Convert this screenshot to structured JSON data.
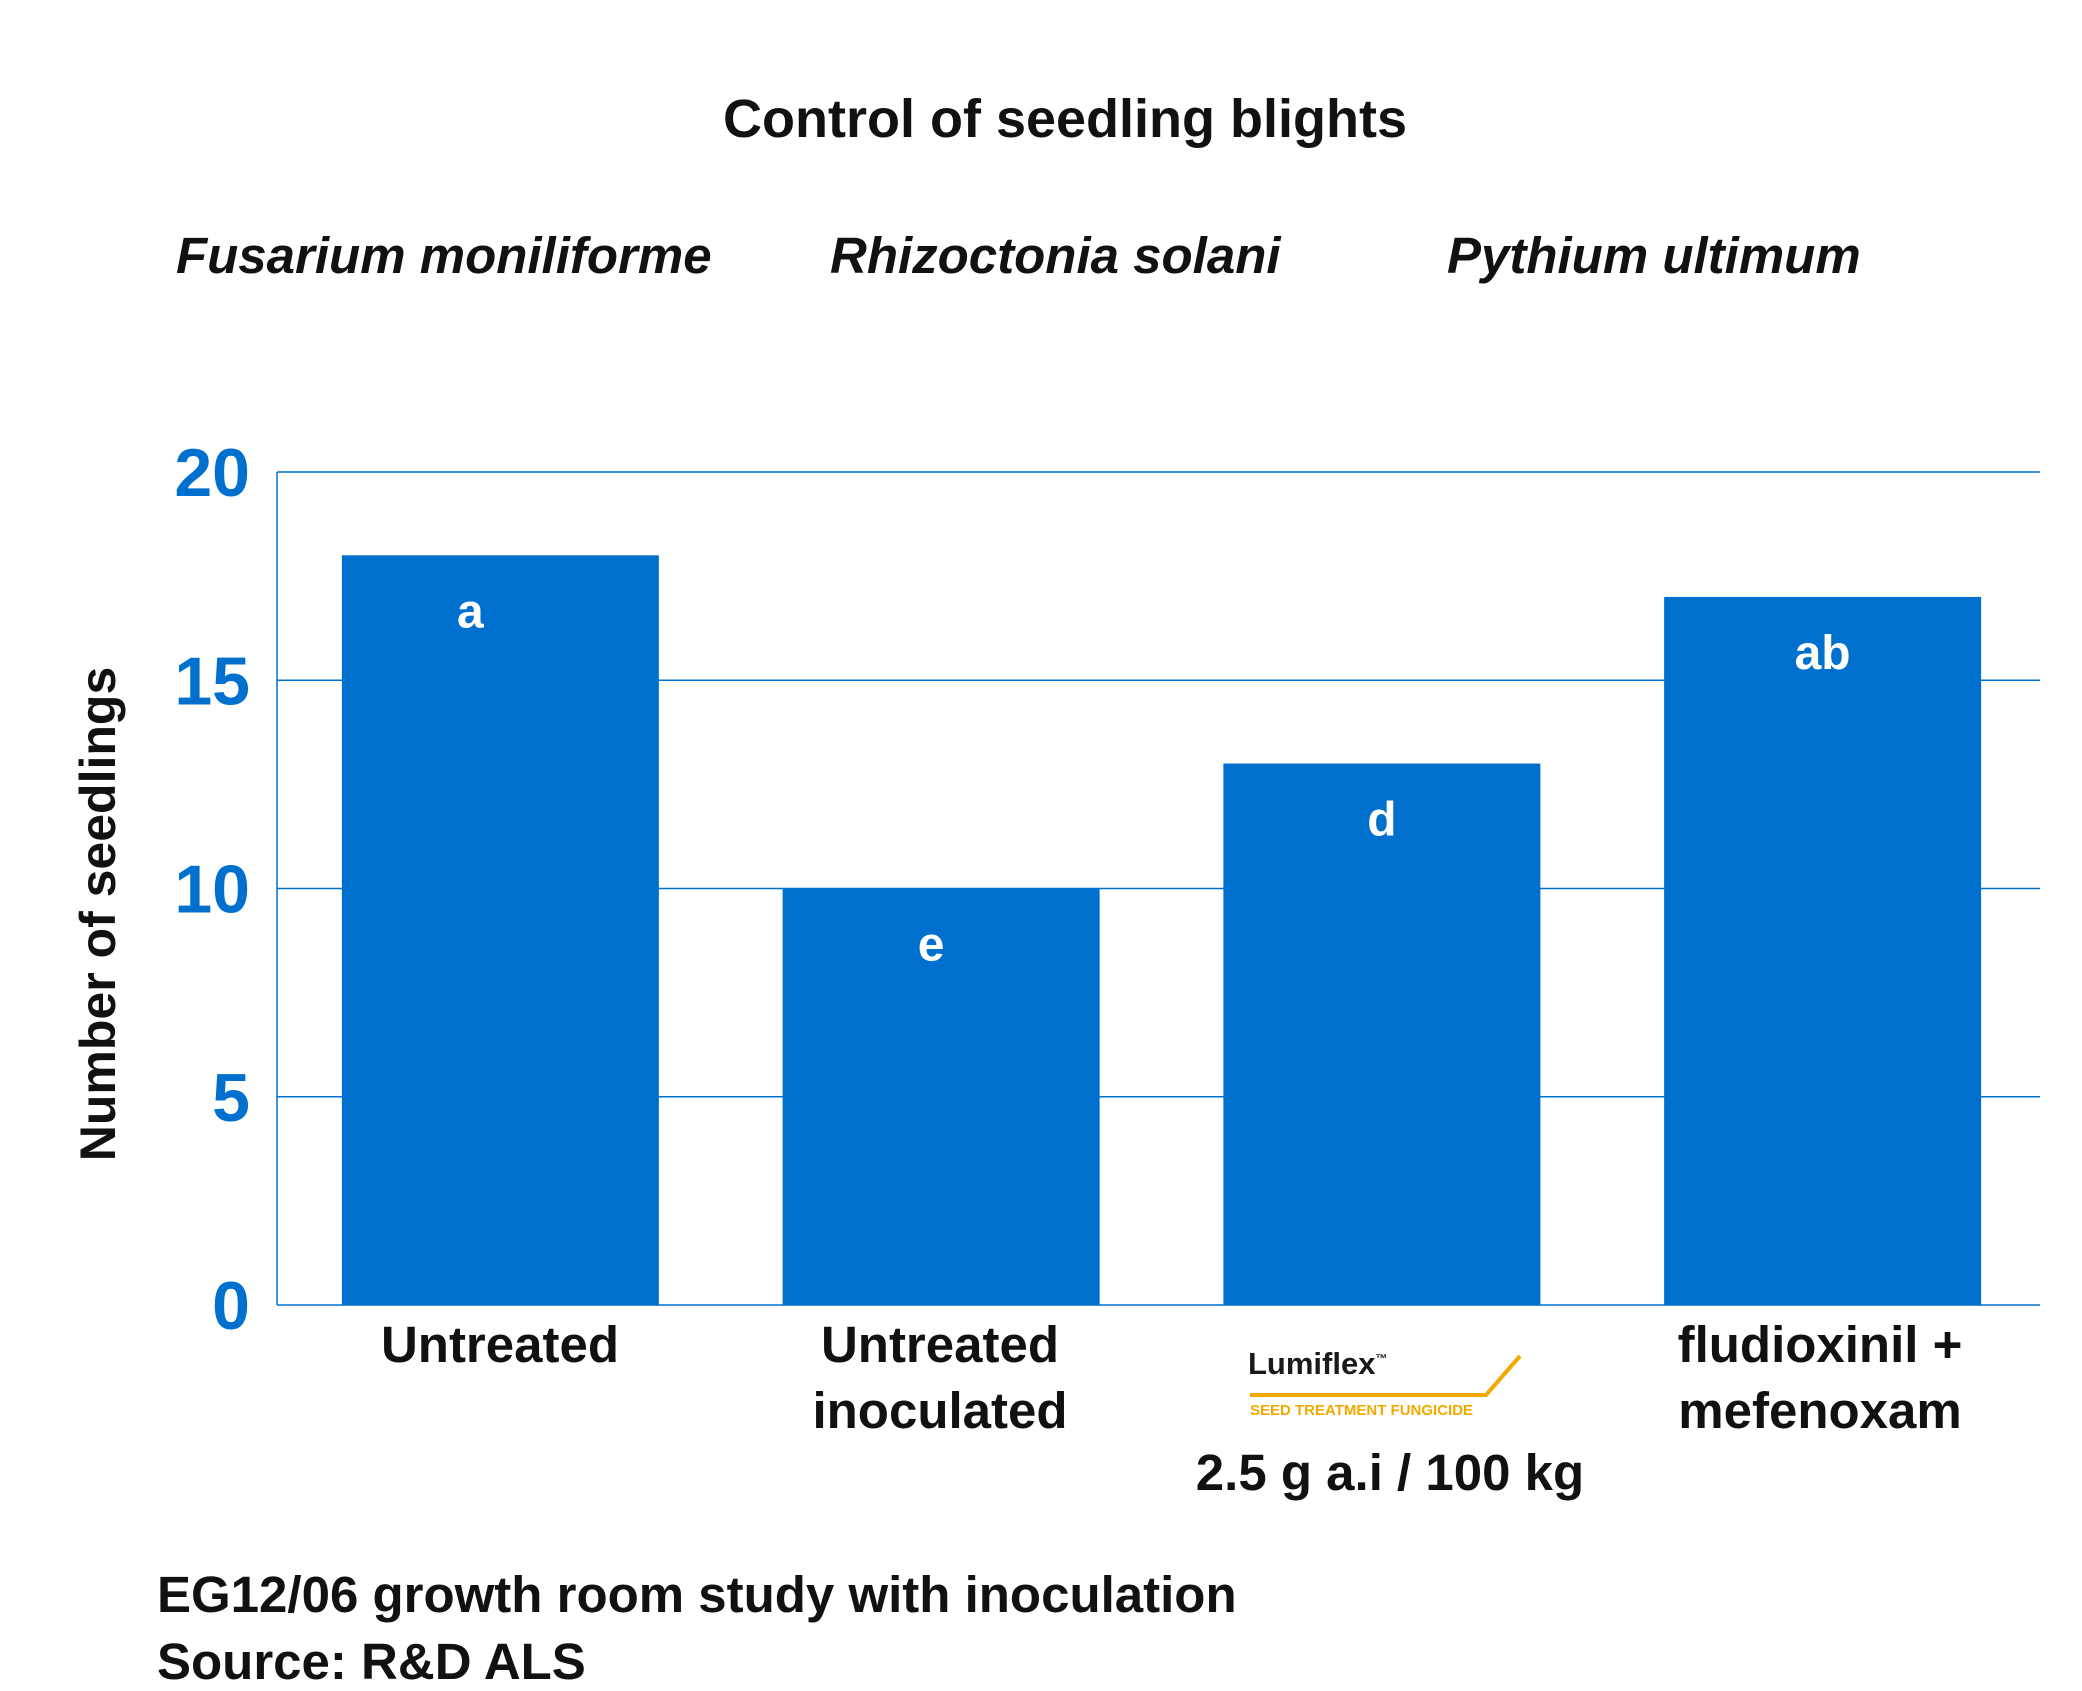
{
  "chart_data": {
    "type": "bar",
    "title": "Control of seedling blights",
    "subtitles": [
      "Fusarium moniliforme",
      "Rhizoctonia solani",
      "Pythium ultimum"
    ],
    "ylabel": "Number of seedlings",
    "ylim": [
      0,
      20
    ],
    "yticks": [
      0,
      5,
      10,
      15,
      20
    ],
    "grid": true,
    "categories": [
      "Untreated",
      "Untreated inoculated",
      "Lumiflex 2.5 g a.i / 100 kg",
      "fludioxinil + mefenoxam"
    ],
    "values": [
      18,
      10,
      13,
      17
    ],
    "bar_labels": [
      "a",
      "e",
      "d",
      "ab"
    ],
    "colors": {
      "bar": "#0070CE",
      "tick": "#0070CE",
      "grid": "#0070CE",
      "logo_accent": "#F2A900"
    }
  },
  "xaxis": {
    "cat0": "Untreated",
    "cat1_line1": "Untreated",
    "cat1_line2": "inoculated",
    "cat2_logo_name": "Lumiflex",
    "cat2_logo_tm": "™",
    "cat2_logo_tagline": "SEED TREATMENT FUNGICIDE",
    "cat2_dose": "2.5 g a.i / 100 kg",
    "cat3_line1": "fludioxinil +",
    "cat3_line2": "mefenoxam"
  },
  "footnotes": [
    "EG12/06 growth room study with inoculation",
    "Source: R&D ALS"
  ]
}
